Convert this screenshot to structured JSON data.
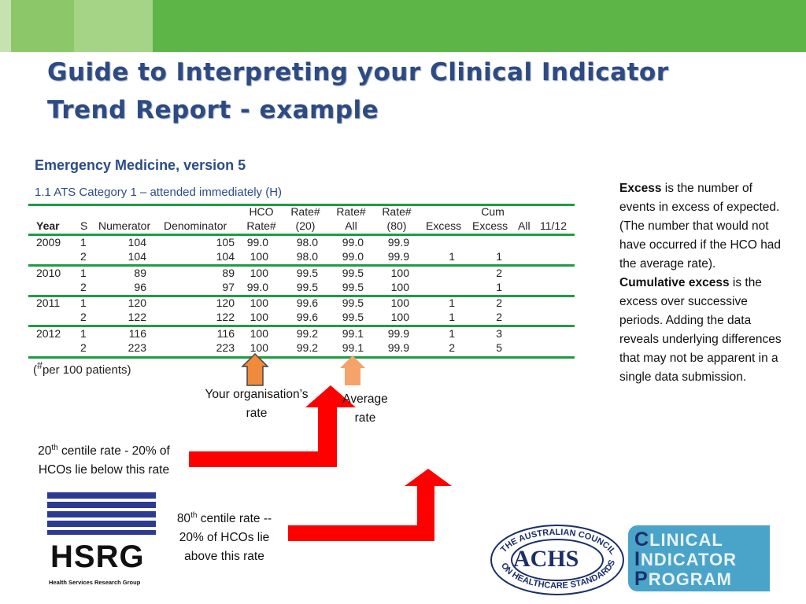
{
  "colors": {
    "title": "#2e4a82",
    "report_title": "#2b4d86",
    "table_rule": "#1e9c45",
    "arrow_red": "#ff0000",
    "arrow_orange": "#f08a3c",
    "arrow_light_orange": "#f5a36b"
  },
  "slide": {
    "title_line1": "Guide to Interpreting your Clinical Indicator",
    "title_line2": "Trend Report - example"
  },
  "report": {
    "title": "Emergency Medicine, version 5",
    "subtitle": "1.1 ATS Category 1 – attended immediately (H)",
    "headers": {
      "year": "Year",
      "s": "S",
      "numerator": "Numerator",
      "denominator": "Denominator",
      "hco_top": "HCO",
      "hco_bottom": "Rate#",
      "rate20_top": "Rate#",
      "rate20_bottom": "(20)",
      "rateall_top": "Rate#",
      "rateall_bottom": "All",
      "rate80_top": "Rate#",
      "rate80_bottom": "(80)",
      "excess": "Excess",
      "cum_top": "Cum",
      "cum_bottom": "Excess",
      "all": "All",
      "period": "11/12"
    },
    "rows": [
      {
        "year": "2009",
        "s": "1",
        "num": "104",
        "den": "105",
        "hco": "99.0",
        "r20": "98.0",
        "rall": "99.0",
        "r80": "99.9",
        "excess": "",
        "cum": ""
      },
      {
        "year": "",
        "s": "2",
        "num": "104",
        "den": "104",
        "hco": "100",
        "r20": "98.0",
        "rall": "99.0",
        "r80": "99.9",
        "excess": "1",
        "cum": "1"
      },
      {
        "year": "2010",
        "s": "1",
        "num": "89",
        "den": "89",
        "hco": "100",
        "r20": "99.5",
        "rall": "99.5",
        "r80": "100",
        "excess": "",
        "cum": "2"
      },
      {
        "year": "",
        "s": "2",
        "num": "96",
        "den": "97",
        "hco": "99.0",
        "r20": "99.5",
        "rall": "99.5",
        "r80": "100",
        "excess": "",
        "cum": "1"
      },
      {
        "year": "2011",
        "s": "1",
        "num": "120",
        "den": "120",
        "hco": "100",
        "r20": "99.6",
        "rall": "99.5",
        "r80": "100",
        "excess": "1",
        "cum": "2"
      },
      {
        "year": "",
        "s": "2",
        "num": "122",
        "den": "122",
        "hco": "100",
        "r20": "99.6",
        "rall": "99.5",
        "r80": "100",
        "excess": "1",
        "cum": "2"
      },
      {
        "year": "2012",
        "s": "1",
        "num": "116",
        "den": "116",
        "hco": "100",
        "r20": "99.2",
        "rall": "99.1",
        "r80": "99.9",
        "excess": "1",
        "cum": "3"
      },
      {
        "year": "",
        "s": "2",
        "num": "223",
        "den": "223",
        "hco": "100",
        "r20": "99.2",
        "rall": "99.1",
        "r80": "99.9",
        "excess": "2",
        "cum": "5"
      }
    ],
    "footnote": "(#per 100 patients)"
  },
  "annotations": {
    "your_rate": "Your organisation’s rate",
    "average_rate_1": "Average",
    "average_rate_2": "rate",
    "c20_num": "20",
    "c20_sup": "th",
    "c20_rest": " centile rate -  20% of",
    "c20_line2": "HCOs lie below this rate",
    "c80_num": "80",
    "c80_sup": "th",
    "c80_rest": " centile rate --",
    "c80_line2": "20% of HCOs lie",
    "c80_line3": "above this rate"
  },
  "side_note": {
    "excess_term": "Excess",
    "excess_text": " is the number of events in excess of expected. (The number that would not have occurred if the HCO had the average rate).",
    "cum_term": "Cumulative excess",
    "cum_text": " is the excess over successive periods. Adding the data reveals underlying differences that may not be apparent in a single data submission."
  },
  "logos": {
    "hsrg": "HSRG",
    "hsrg_sub": "Health Services Research Group",
    "achs": "ACHS",
    "achs_ring_top": "THE AUSTRALIAN COUNCIL",
    "achs_ring_bottom": "ON HEALTHCARE STANDARDS",
    "cip_line1_first": "C",
    "cip_line1_rest": "LINICAL",
    "cip_line2_first": "I",
    "cip_line2_rest": "NDICATOR",
    "cip_line3_first": "P",
    "cip_line3_rest": "ROGRAM"
  }
}
